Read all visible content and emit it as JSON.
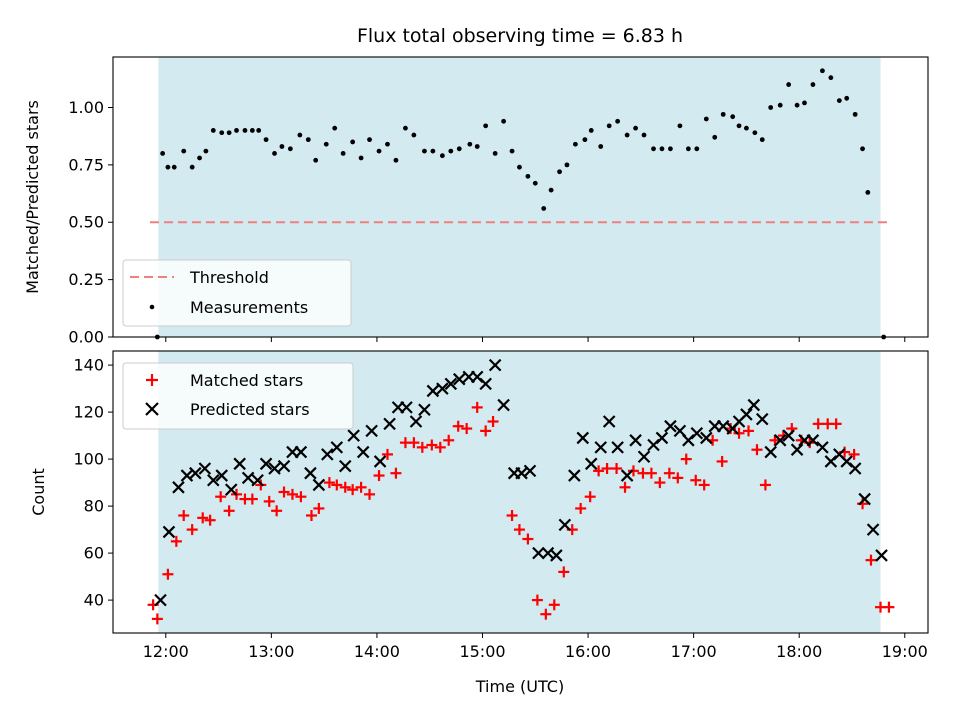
{
  "chart_data": [
    {
      "type": "scatter",
      "title": "Flux total observing time = 6.83 h",
      "xlabel": "",
      "ylabel": "Matched/Predicted stars",
      "x_unit": "hours UTC",
      "xlim": [
        11.5,
        19.22
      ],
      "ylim": [
        0,
        1.22
      ],
      "yticks": [
        0.0,
        0.25,
        0.5,
        0.75,
        1.0
      ],
      "ytick_labels": [
        "0.00",
        "0.25",
        "0.50",
        "0.75",
        "1.00"
      ],
      "observing_window": [
        11.93,
        18.77
      ],
      "observing_window_color": "#d3eaf0",
      "threshold": {
        "name": "Threshold",
        "value": 0.5,
        "x_range": [
          11.85,
          18.85
        ],
        "color": "#f08080"
      },
      "legend": {
        "loc": "lower-left",
        "entries": [
          "Threshold",
          "Measurements"
        ]
      },
      "series": [
        {
          "name": "Measurements",
          "color": "#000000",
          "marker": "dot",
          "points": [
            [
              11.92,
              0.0
            ],
            [
              11.97,
              0.8
            ],
            [
              12.02,
              0.74
            ],
            [
              12.08,
              0.74
            ],
            [
              12.17,
              0.81
            ],
            [
              12.25,
              0.74
            ],
            [
              12.32,
              0.78
            ],
            [
              12.38,
              0.81
            ],
            [
              12.45,
              0.9
            ],
            [
              12.53,
              0.89
            ],
            [
              12.6,
              0.89
            ],
            [
              12.67,
              0.9
            ],
            [
              12.75,
              0.9
            ],
            [
              12.82,
              0.9
            ],
            [
              12.88,
              0.9
            ],
            [
              12.95,
              0.86
            ],
            [
              13.03,
              0.8
            ],
            [
              13.1,
              0.83
            ],
            [
              13.18,
              0.82
            ],
            [
              13.27,
              0.88
            ],
            [
              13.35,
              0.86
            ],
            [
              13.42,
              0.77
            ],
            [
              13.52,
              0.84
            ],
            [
              13.6,
              0.91
            ],
            [
              13.68,
              0.8
            ],
            [
              13.77,
              0.85
            ],
            [
              13.85,
              0.78
            ],
            [
              13.93,
              0.86
            ],
            [
              14.02,
              0.81
            ],
            [
              14.1,
              0.84
            ],
            [
              14.18,
              0.77
            ],
            [
              14.27,
              0.91
            ],
            [
              14.35,
              0.88
            ],
            [
              14.45,
              0.81
            ],
            [
              14.53,
              0.81
            ],
            [
              14.62,
              0.79
            ],
            [
              14.7,
              0.81
            ],
            [
              14.78,
              0.82
            ],
            [
              14.88,
              0.84
            ],
            [
              14.95,
              0.83
            ],
            [
              15.03,
              0.92
            ],
            [
              15.12,
              0.8
            ],
            [
              15.2,
              0.94
            ],
            [
              15.28,
              0.81
            ],
            [
              15.35,
              0.74
            ],
            [
              15.43,
              0.7
            ],
            [
              15.5,
              0.67
            ],
            [
              15.58,
              0.56
            ],
            [
              15.65,
              0.64
            ],
            [
              15.73,
              0.72
            ],
            [
              15.8,
              0.75
            ],
            [
              15.88,
              0.84
            ],
            [
              15.97,
              0.86
            ],
            [
              16.03,
              0.9
            ],
            [
              16.12,
              0.83
            ],
            [
              16.2,
              0.92
            ],
            [
              16.28,
              0.94
            ],
            [
              16.37,
              0.88
            ],
            [
              16.45,
              0.91
            ],
            [
              16.53,
              0.88
            ],
            [
              16.62,
              0.82
            ],
            [
              16.7,
              0.82
            ],
            [
              16.78,
              0.82
            ],
            [
              16.87,
              0.92
            ],
            [
              16.95,
              0.82
            ],
            [
              17.03,
              0.82
            ],
            [
              17.12,
              0.95
            ],
            [
              17.2,
              0.87
            ],
            [
              17.28,
              0.97
            ],
            [
              17.37,
              0.96
            ],
            [
              17.43,
              0.92
            ],
            [
              17.5,
              0.91
            ],
            [
              17.58,
              0.89
            ],
            [
              17.65,
              0.86
            ],
            [
              17.73,
              1.0
            ],
            [
              17.82,
              1.01
            ],
            [
              17.9,
              1.1
            ],
            [
              17.98,
              1.01
            ],
            [
              18.05,
              1.02
            ],
            [
              18.13,
              1.1
            ],
            [
              18.22,
              1.16
            ],
            [
              18.3,
              1.13
            ],
            [
              18.38,
              1.03
            ],
            [
              18.45,
              1.04
            ],
            [
              18.53,
              0.97
            ],
            [
              18.6,
              0.82
            ],
            [
              18.65,
              0.63
            ],
            [
              18.8,
              0.0
            ]
          ]
        }
      ]
    },
    {
      "type": "scatter",
      "title": "",
      "xlabel": "Time (UTC)",
      "ylabel": "Count",
      "x_unit": "hours UTC",
      "xlim": [
        11.5,
        19.22
      ],
      "ylim": [
        26,
        146
      ],
      "xticks": [
        12,
        13,
        14,
        15,
        16,
        17,
        18,
        19
      ],
      "xtick_labels": [
        "12:00",
        "13:00",
        "14:00",
        "15:00",
        "16:00",
        "17:00",
        "18:00",
        "19:00"
      ],
      "yticks": [
        40,
        60,
        80,
        100,
        120,
        140
      ],
      "ytick_labels": [
        "40",
        "60",
        "80",
        "100",
        "120",
        "140"
      ],
      "observing_window": [
        11.93,
        18.77
      ],
      "observing_window_color": "#d3eaf0",
      "legend": {
        "loc": "upper-left",
        "entries": [
          "Matched stars",
          "Predicted stars"
        ]
      },
      "series": [
        {
          "name": "Matched stars",
          "color": "#ff0000",
          "marker": "plus",
          "points": [
            [
              11.88,
              38
            ],
            [
              11.92,
              32
            ],
            [
              12.02,
              51
            ],
            [
              12.1,
              65
            ],
            [
              12.17,
              76
            ],
            [
              12.25,
              70
            ],
            [
              12.35,
              75
            ],
            [
              12.42,
              74
            ],
            [
              12.52,
              84
            ],
            [
              12.6,
              78
            ],
            [
              12.67,
              85
            ],
            [
              12.75,
              83
            ],
            [
              12.82,
              83
            ],
            [
              12.9,
              89
            ],
            [
              12.98,
              82
            ],
            [
              13.05,
              78
            ],
            [
              13.12,
              86
            ],
            [
              13.2,
              85
            ],
            [
              13.28,
              84
            ],
            [
              13.38,
              76
            ],
            [
              13.45,
              79
            ],
            [
              13.55,
              90
            ],
            [
              13.62,
              89
            ],
            [
              13.7,
              88
            ],
            [
              13.77,
              87
            ],
            [
              13.85,
              88
            ],
            [
              13.93,
              85
            ],
            [
              14.02,
              93
            ],
            [
              14.1,
              102
            ],
            [
              14.18,
              94
            ],
            [
              14.27,
              107
            ],
            [
              14.35,
              107
            ],
            [
              14.43,
              105
            ],
            [
              14.52,
              106
            ],
            [
              14.6,
              105
            ],
            [
              14.68,
              108
            ],
            [
              14.77,
              114
            ],
            [
              14.85,
              113
            ],
            [
              14.95,
              122
            ],
            [
              15.03,
              112
            ],
            [
              15.1,
              116
            ],
            [
              15.28,
              76
            ],
            [
              15.35,
              70
            ],
            [
              15.43,
              66
            ],
            [
              15.52,
              40
            ],
            [
              15.6,
              34
            ],
            [
              15.68,
              38
            ],
            [
              15.77,
              52
            ],
            [
              15.85,
              70
            ],
            [
              15.93,
              79
            ],
            [
              16.02,
              84
            ],
            [
              16.1,
              95
            ],
            [
              16.18,
              96
            ],
            [
              16.27,
              96
            ],
            [
              16.35,
              88
            ],
            [
              16.43,
              95
            ],
            [
              16.52,
              94
            ],
            [
              16.6,
              94
            ],
            [
              16.68,
              90
            ],
            [
              16.77,
              94
            ],
            [
              16.85,
              92
            ],
            [
              16.93,
              100
            ],
            [
              17.02,
              91
            ],
            [
              17.1,
              89
            ],
            [
              17.18,
              108
            ],
            [
              17.27,
              99
            ],
            [
              17.35,
              113
            ],
            [
              17.43,
              111
            ],
            [
              17.52,
              112
            ],
            [
              17.6,
              104
            ],
            [
              17.68,
              89
            ],
            [
              17.77,
              108
            ],
            [
              17.85,
              110
            ],
            [
              17.93,
              113
            ],
            [
              18.02,
              108
            ],
            [
              18.1,
              107
            ],
            [
              18.18,
              115
            ],
            [
              18.27,
              115
            ],
            [
              18.35,
              115
            ],
            [
              18.43,
              103
            ],
            [
              18.52,
              102
            ],
            [
              18.6,
              81
            ],
            [
              18.68,
              57
            ],
            [
              18.77,
              37
            ],
            [
              18.85,
              37
            ]
          ]
        },
        {
          "name": "Predicted stars",
          "color": "#000000",
          "marker": "x",
          "points": [
            [
              11.95,
              40
            ],
            [
              12.03,
              69
            ],
            [
              12.12,
              88
            ],
            [
              12.2,
              93
            ],
            [
              12.28,
              94
            ],
            [
              12.37,
              96
            ],
            [
              12.45,
              91
            ],
            [
              12.53,
              93
            ],
            [
              12.62,
              87
            ],
            [
              12.7,
              98
            ],
            [
              12.78,
              92
            ],
            [
              12.87,
              91
            ],
            [
              12.95,
              98
            ],
            [
              13.03,
              96
            ],
            [
              13.12,
              97
            ],
            [
              13.2,
              103
            ],
            [
              13.28,
              103
            ],
            [
              13.37,
              94
            ],
            [
              13.45,
              89
            ],
            [
              13.53,
              102
            ],
            [
              13.62,
              105
            ],
            [
              13.7,
              97
            ],
            [
              13.78,
              110
            ],
            [
              13.87,
              103
            ],
            [
              13.95,
              112
            ],
            [
              14.03,
              99
            ],
            [
              14.12,
              115
            ],
            [
              14.2,
              122
            ],
            [
              14.28,
              122
            ],
            [
              14.37,
              116
            ],
            [
              14.45,
              121
            ],
            [
              14.53,
              129
            ],
            [
              14.62,
              130
            ],
            [
              14.7,
              132
            ],
            [
              14.78,
              134
            ],
            [
              14.87,
              135
            ],
            [
              14.95,
              135
            ],
            [
              15.03,
              132
            ],
            [
              15.12,
              140
            ],
            [
              15.2,
              123
            ],
            [
              15.3,
              94
            ],
            [
              15.37,
              94
            ],
            [
              15.45,
              95
            ],
            [
              15.53,
              60
            ],
            [
              15.62,
              60
            ],
            [
              15.7,
              59
            ],
            [
              15.78,
              72
            ],
            [
              15.87,
              93
            ],
            [
              15.95,
              109
            ],
            [
              16.03,
              98
            ],
            [
              16.12,
              105
            ],
            [
              16.2,
              116
            ],
            [
              16.28,
              105
            ],
            [
              16.37,
              93
            ],
            [
              16.45,
              108
            ],
            [
              16.53,
              101
            ],
            [
              16.62,
              106
            ],
            [
              16.7,
              109
            ],
            [
              16.78,
              114
            ],
            [
              16.87,
              112
            ],
            [
              16.95,
              108
            ],
            [
              17.03,
              111
            ],
            [
              17.12,
              109
            ],
            [
              17.2,
              114
            ],
            [
              17.28,
              114
            ],
            [
              17.37,
              113
            ],
            [
              17.43,
              116
            ],
            [
              17.5,
              119
            ],
            [
              17.57,
              123
            ],
            [
              17.65,
              117
            ],
            [
              17.73,
              103
            ],
            [
              17.82,
              108
            ],
            [
              17.9,
              110
            ],
            [
              17.98,
              104
            ],
            [
              18.05,
              108
            ],
            [
              18.13,
              108
            ],
            [
              18.22,
              105
            ],
            [
              18.3,
              99
            ],
            [
              18.38,
              102
            ],
            [
              18.45,
              99
            ],
            [
              18.53,
              96
            ],
            [
              18.62,
              83
            ],
            [
              18.7,
              70
            ],
            [
              18.78,
              59
            ]
          ]
        }
      ]
    }
  ]
}
